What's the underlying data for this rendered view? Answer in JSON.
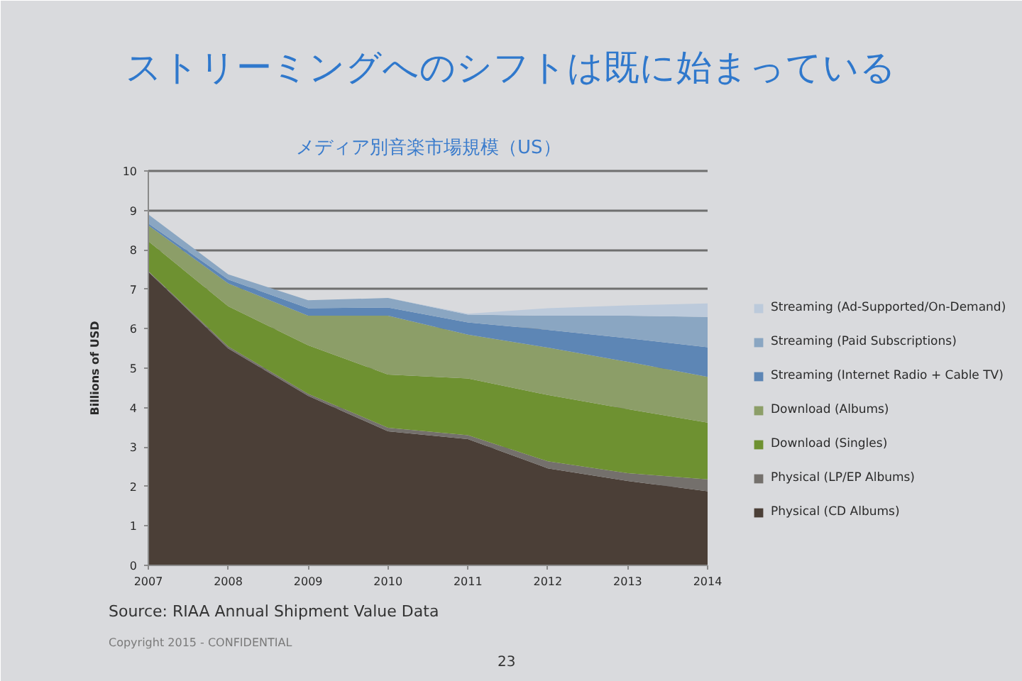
{
  "chart_data": {
    "type": "area",
    "title": "ストリーミングへのシフトは既に始まっている",
    "subtitle": "メディア別音楽市場規模（US）",
    "ylabel": "Billions of USD",
    "x": [
      2007,
      2008,
      2009,
      2010,
      2011,
      2012,
      2013,
      2014
    ],
    "xlim": [
      2007,
      2014
    ],
    "xticks": [
      2007,
      2008,
      2009,
      2010,
      2011,
      2012,
      2013,
      2014
    ],
    "ylim": [
      0,
      10
    ],
    "yticks": [
      0,
      1,
      2,
      3,
      4,
      5,
      6,
      7,
      8,
      9,
      10
    ],
    "stacked": true,
    "grid": "y",
    "legend": "right",
    "series": [
      {
        "name": "Physical (CD Albums)",
        "color": "#4b3f37",
        "values": [
          7.44,
          5.5,
          4.3,
          3.4,
          3.2,
          2.46,
          2.14,
          1.88
        ]
      },
      {
        "name": "Physical (LP/EP Albums)",
        "color": "#74706c",
        "values": [
          0.02,
          0.05,
          0.05,
          0.09,
          0.1,
          0.18,
          0.2,
          0.3
        ]
      },
      {
        "name": "Download (Singles)",
        "color": "#6e9131",
        "values": [
          0.76,
          1.02,
          1.23,
          1.35,
          1.44,
          1.68,
          1.62,
          1.44
        ]
      },
      {
        "name": "Download (Albums)",
        "color": "#8c9e68",
        "values": [
          0.4,
          0.58,
          0.75,
          1.49,
          1.11,
          1.2,
          1.2,
          1.16
        ]
      },
      {
        "name": "Streaming (Internet Radio + Cable TV)",
        "color": "#5d86b5",
        "values": [
          0.05,
          0.1,
          0.19,
          0.21,
          0.31,
          0.45,
          0.6,
          0.75
        ]
      },
      {
        "name": "Streaming (Paid Subscriptions)",
        "color": "#8aa6c2",
        "values": [
          0.23,
          0.13,
          0.2,
          0.24,
          0.2,
          0.36,
          0.57,
          0.77
        ]
      },
      {
        "name": "Streaming (Ad-Supported/On-Demand)",
        "color": "#bccadb",
        "values": [
          0,
          0,
          0,
          0,
          0.02,
          0.19,
          0.26,
          0.34
        ]
      }
    ],
    "annotations": [
      "Source: RIAA Annual Shipment Value Data",
      "Copyright 2015 - CONFIDENTIAL",
      "23"
    ]
  }
}
